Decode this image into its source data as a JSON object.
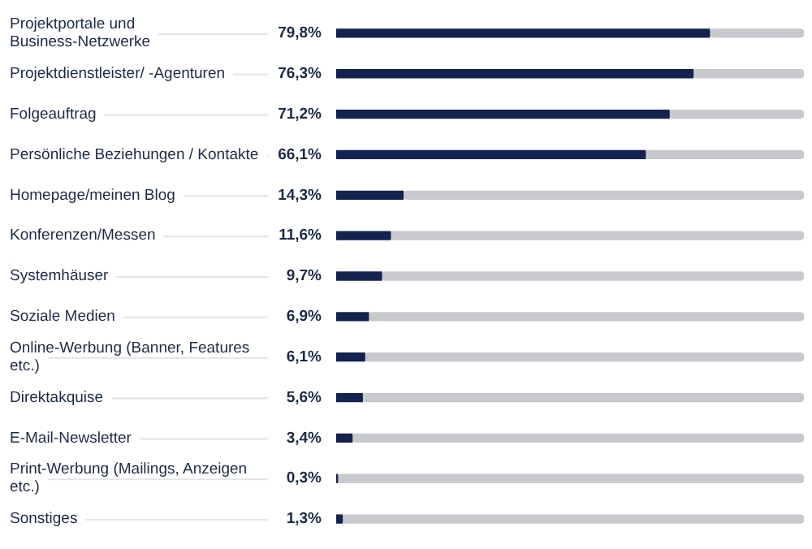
{
  "chart_data": {
    "type": "bar",
    "orientation": "horizontal",
    "stacked": true,
    "categories": [
      "Projektportale und Business-Netzwerke",
      "Projektdienstleister/ -Agenturen",
      "Folgeauftrag",
      "Persönliche Beziehungen / Kontakte",
      "Homepage/meinen Blog",
      "Konferenzen/Messen",
      "Systemhäuser",
      "Soziale Medien",
      "Online-Werbung (Banner, Features etc.)",
      "Direktakquise",
      "E-Mail-Newsletter",
      "Print-Werbung (Mailings, Anzeigen etc.)",
      "Sonstiges"
    ],
    "series": [
      {
        "color": "#14224f",
        "values": [
          79.8,
          76.3,
          71.2,
          66.1,
          14.3,
          11.6,
          9.7,
          6.9,
          6.1,
          5.6,
          3.4,
          0.3,
          1.3
        ],
        "value_labels": [
          "79,8%",
          "76,3%",
          "71,2%",
          "66,1%",
          "14,3%",
          "11,6%",
          "9,7%",
          "6,9%",
          "6,1%",
          "5,6%",
          "3,4%",
          "0,3%",
          "1,3%"
        ]
      },
      {
        "color": "#c8c9cd",
        "values": [
          20.2,
          23.7,
          28.8,
          33.9,
          85.7,
          88.4,
          90.3,
          93.1,
          93.9,
          94.4,
          96.6,
          99.7,
          98.7
        ]
      }
    ],
    "xlim": [
      0,
      100
    ],
    "tick_labels": "y"
  }
}
